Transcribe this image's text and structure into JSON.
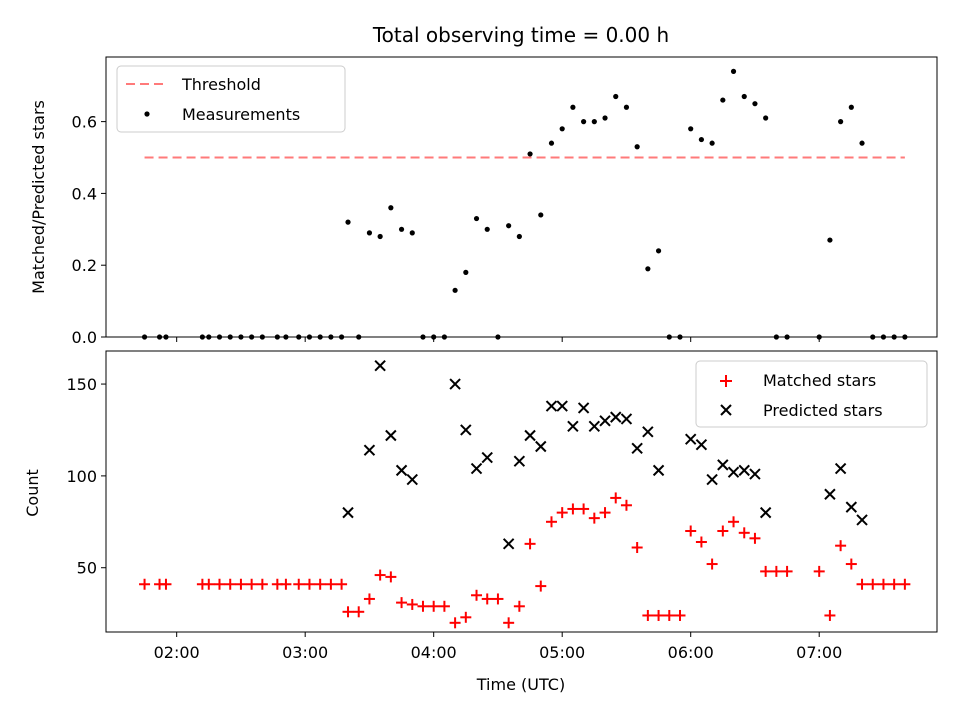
{
  "chart_data": [
    {
      "type": "scatter",
      "title": "Total observing time = 0.00 h",
      "xlabel": "",
      "ylabel": "Matched/Predicted stars",
      "xlim": [
        "01:27",
        "07:55"
      ],
      "ylim": [
        0,
        0.78
      ],
      "yticks": [
        0.0,
        0.2,
        0.4,
        0.6
      ],
      "ytick_labels": [
        "0.0",
        "0.2",
        "0.4",
        "0.6"
      ],
      "legend_position": "upper left",
      "grid": false,
      "threshold": {
        "name": "Threshold",
        "value": 0.5,
        "x_start": "01:45",
        "x_end": "07:40",
        "color": "#ff7a7a"
      },
      "series": [
        {
          "name": "Measurements",
          "color": "#000000",
          "points": [
            [
              "01:45",
              0
            ],
            [
              "01:52",
              0
            ],
            [
              "01:55",
              0
            ],
            [
              "02:12",
              0
            ],
            [
              "02:15",
              0
            ],
            [
              "02:20",
              0
            ],
            [
              "02:25",
              0
            ],
            [
              "02:30",
              0
            ],
            [
              "02:35",
              0
            ],
            [
              "02:40",
              0
            ],
            [
              "02:47",
              0
            ],
            [
              "02:51",
              0
            ],
            [
              "02:57",
              0
            ],
            [
              "03:02",
              0
            ],
            [
              "03:07",
              0
            ],
            [
              "03:12",
              0
            ],
            [
              "03:17",
              0
            ],
            [
              "03:20",
              0.32
            ],
            [
              "03:25",
              0
            ],
            [
              "03:30",
              0.29
            ],
            [
              "03:35",
              0.28
            ],
            [
              "03:40",
              0.36
            ],
            [
              "03:45",
              0.3
            ],
            [
              "03:50",
              0.29
            ],
            [
              "03:55",
              0
            ],
            [
              "04:00",
              0
            ],
            [
              "04:05",
              0
            ],
            [
              "04:10",
              0.13
            ],
            [
              "04:15",
              0.18
            ],
            [
              "04:20",
              0.33
            ],
            [
              "04:25",
              0.3
            ],
            [
              "04:30",
              0
            ],
            [
              "04:35",
              0.31
            ],
            [
              "04:40",
              0.28
            ],
            [
              "04:45",
              0.51
            ],
            [
              "04:50",
              0.34
            ],
            [
              "04:55",
              0.54
            ],
            [
              "05:00",
              0.58
            ],
            [
              "05:05",
              0.64
            ],
            [
              "05:10",
              0.6
            ],
            [
              "05:15",
              0.6
            ],
            [
              "05:20",
              0.61
            ],
            [
              "05:25",
              0.67
            ],
            [
              "05:30",
              0.64
            ],
            [
              "05:35",
              0.53
            ],
            [
              "05:40",
              0.19
            ],
            [
              "05:45",
              0.24
            ],
            [
              "05:50",
              0
            ],
            [
              "05:55",
              0
            ],
            [
              "06:00",
              0.58
            ],
            [
              "06:05",
              0.55
            ],
            [
              "06:10",
              0.54
            ],
            [
              "06:15",
              0.66
            ],
            [
              "06:20",
              0.74
            ],
            [
              "06:25",
              0.67
            ],
            [
              "06:30",
              0.65
            ],
            [
              "06:35",
              0.61
            ],
            [
              "06:40",
              0
            ],
            [
              "06:45",
              0
            ],
            [
              "07:00",
              0
            ],
            [
              "07:05",
              0.27
            ],
            [
              "07:10",
              0.6
            ],
            [
              "07:15",
              0.64
            ],
            [
              "07:20",
              0.54
            ],
            [
              "07:25",
              0
            ],
            [
              "07:30",
              0
            ],
            [
              "07:35",
              0
            ],
            [
              "07:40",
              0
            ]
          ]
        }
      ]
    },
    {
      "type": "scatter",
      "title": "",
      "xlabel": "Time (UTC)",
      "ylabel": "Count",
      "xlim": [
        "01:27",
        "07:55"
      ],
      "ylim": [
        15,
        168
      ],
      "yticks": [
        50,
        100,
        150
      ],
      "ytick_labels": [
        "50",
        "100",
        "150"
      ],
      "xticks": [
        "02:00",
        "03:00",
        "04:00",
        "05:00",
        "06:00",
        "07:00"
      ],
      "legend_position": "upper right",
      "grid": false,
      "series": [
        {
          "name": "Matched stars",
          "color": "#ff0000",
          "marker": "+",
          "points": [
            [
              "01:45",
              41
            ],
            [
              "01:52",
              41
            ],
            [
              "01:55",
              41
            ],
            [
              "02:12",
              41
            ],
            [
              "02:15",
              41
            ],
            [
              "02:20",
              41
            ],
            [
              "02:25",
              41
            ],
            [
              "02:30",
              41
            ],
            [
              "02:35",
              41
            ],
            [
              "02:40",
              41
            ],
            [
              "02:47",
              41
            ],
            [
              "02:51",
              41
            ],
            [
              "02:57",
              41
            ],
            [
              "03:02",
              41
            ],
            [
              "03:07",
              41
            ],
            [
              "03:12",
              41
            ],
            [
              "03:17",
              41
            ],
            [
              "03:20",
              26
            ],
            [
              "03:25",
              26
            ],
            [
              "03:30",
              33
            ],
            [
              "03:35",
              46
            ],
            [
              "03:40",
              45
            ],
            [
              "03:45",
              31
            ],
            [
              "03:50",
              30
            ],
            [
              "03:55",
              29
            ],
            [
              "04:00",
              29
            ],
            [
              "04:05",
              29
            ],
            [
              "04:10",
              20
            ],
            [
              "04:15",
              23
            ],
            [
              "04:20",
              35
            ],
            [
              "04:25",
              33
            ],
            [
              "04:30",
              33
            ],
            [
              "04:35",
              20
            ],
            [
              "04:40",
              29
            ],
            [
              "04:45",
              63
            ],
            [
              "04:50",
              40
            ],
            [
              "04:55",
              75
            ],
            [
              "05:00",
              80
            ],
            [
              "05:05",
              82
            ],
            [
              "05:10",
              82
            ],
            [
              "05:15",
              77
            ],
            [
              "05:20",
              80
            ],
            [
              "05:25",
              88
            ],
            [
              "05:30",
              84
            ],
            [
              "05:35",
              61
            ],
            [
              "05:40",
              24
            ],
            [
              "05:45",
              24
            ],
            [
              "05:50",
              24
            ],
            [
              "05:55",
              24
            ],
            [
              "06:00",
              70
            ],
            [
              "06:05",
              64
            ],
            [
              "06:10",
              52
            ],
            [
              "06:15",
              70
            ],
            [
              "06:20",
              75
            ],
            [
              "06:25",
              69
            ],
            [
              "06:30",
              66
            ],
            [
              "06:35",
              48
            ],
            [
              "06:40",
              48
            ],
            [
              "06:45",
              48
            ],
            [
              "07:00",
              48
            ],
            [
              "07:05",
              24
            ],
            [
              "07:10",
              62
            ],
            [
              "07:15",
              52
            ],
            [
              "07:20",
              41
            ],
            [
              "07:25",
              41
            ],
            [
              "07:30",
              41
            ],
            [
              "07:35",
              41
            ],
            [
              "07:40",
              41
            ]
          ]
        },
        {
          "name": "Predicted stars",
          "color": "#000000",
          "marker": "x",
          "points": [
            [
              "03:20",
              80
            ],
            [
              "03:30",
              114
            ],
            [
              "03:35",
              160
            ],
            [
              "03:40",
              122
            ],
            [
              "03:45",
              103
            ],
            [
              "03:50",
              98
            ],
            [
              "04:10",
              150
            ],
            [
              "04:15",
              125
            ],
            [
              "04:20",
              104
            ],
            [
              "04:25",
              110
            ],
            [
              "04:35",
              63
            ],
            [
              "04:40",
              108
            ],
            [
              "04:45",
              122
            ],
            [
              "04:50",
              116
            ],
            [
              "04:55",
              138
            ],
            [
              "05:00",
              138
            ],
            [
              "05:05",
              127
            ],
            [
              "05:10",
              137
            ],
            [
              "05:15",
              127
            ],
            [
              "05:20",
              130
            ],
            [
              "05:25",
              132
            ],
            [
              "05:30",
              131
            ],
            [
              "05:35",
              115
            ],
            [
              "05:40",
              124
            ],
            [
              "05:45",
              103
            ],
            [
              "06:00",
              120
            ],
            [
              "06:05",
              117
            ],
            [
              "06:10",
              98
            ],
            [
              "06:15",
              106
            ],
            [
              "06:20",
              102
            ],
            [
              "06:25",
              103
            ],
            [
              "06:30",
              101
            ],
            [
              "06:35",
              80
            ],
            [
              "07:05",
              90
            ],
            [
              "07:10",
              104
            ],
            [
              "07:15",
              83
            ],
            [
              "07:20",
              76
            ]
          ]
        }
      ]
    }
  ]
}
